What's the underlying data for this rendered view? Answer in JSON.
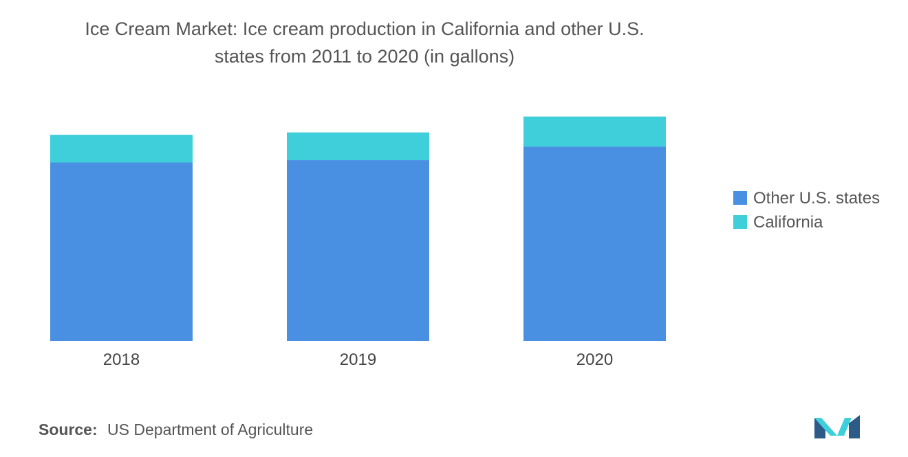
{
  "title_lines": [
    "Ice Cream Market: Ice cream production in California and other U.S.",
    "states from 2011 to 2020 (in gallons)"
  ],
  "source": {
    "label": "Source:",
    "text": "US Department of Agriculture"
  },
  "colors": {
    "other_states": "#4A90E2",
    "california": "#3ECFDB",
    "text": "#555555",
    "logo_dark": "#2E5A88",
    "logo_light": "#3ECFDB"
  },
  "logo_icon": "mordor-logo-icon",
  "chart_data": {
    "type": "bar",
    "stacked": true,
    "categories": [
      "2018",
      "2019",
      "2020"
    ],
    "series": [
      {
        "name": "Other U.S. states",
        "values": [
          225,
          228,
          245
        ]
      },
      {
        "name": "California",
        "values": [
          35,
          35,
          38
        ]
      }
    ],
    "ylim": [
      0,
      300
    ],
    "grid": false,
    "legend_position": "right",
    "xlabel": "",
    "ylabel": ""
  }
}
